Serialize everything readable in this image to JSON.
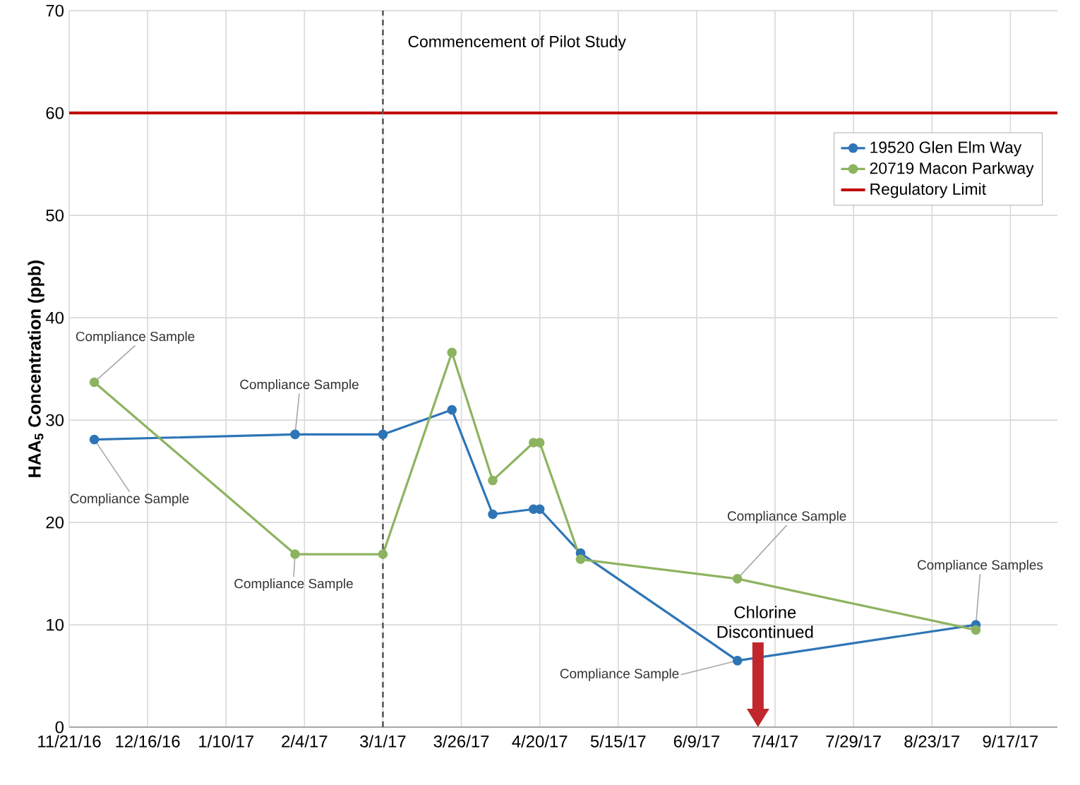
{
  "chart_data": {
    "type": "line",
    "ylabel": "HAA$_{5}$ Concentration (ppb)",
    "x": [
      "2016-11-29",
      "2017-02-01",
      "2017-03-01",
      "2017-03-23",
      "2017-04-05",
      "2017-04-18",
      "2017-04-20",
      "2017-05-03",
      "2017-06-22",
      "2017-09-06"
    ],
    "series": [
      {
        "name": "19520 Glen Elm Way",
        "color": "#2e75b6",
        "values": [
          28.1,
          28.6,
          28.6,
          31.0,
          20.8,
          21.3,
          21.3,
          17.0,
          6.5,
          10.0
        ]
      },
      {
        "name": "20719 Macon Parkway",
        "color": "#8db360",
        "values": [
          33.7,
          16.9,
          16.9,
          36.6,
          24.1,
          27.8,
          27.8,
          16.4,
          14.5,
          9.5
        ]
      }
    ],
    "marker": "circle",
    "grid": true,
    "legend": "top right",
    "xlim": [
      "2016-11-21",
      "2017-10-02"
    ],
    "xticks": [
      {
        "value": "2016-11-21",
        "label": "11/21/16"
      },
      {
        "value": "2016-12-16",
        "label": "12/16/16"
      },
      {
        "value": "2017-01-10",
        "label": "1/10/17"
      },
      {
        "value": "2017-02-04",
        "label": "2/4/17"
      },
      {
        "value": "2017-03-01",
        "label": "3/1/17"
      },
      {
        "value": "2017-03-26",
        "label": "3/26/17"
      },
      {
        "value": "2017-04-20",
        "label": "4/20/17"
      },
      {
        "value": "2017-05-15",
        "label": "5/15/17"
      },
      {
        "value": "2017-06-09",
        "label": "6/9/17"
      },
      {
        "value": "2017-07-04",
        "label": "7/4/17"
      },
      {
        "value": "2017-07-29",
        "label": "7/29/17"
      },
      {
        "value": "2017-08-23",
        "label": "8/23/17"
      },
      {
        "value": "2017-09-17",
        "label": "9/17/17"
      }
    ],
    "ylim": [
      0,
      70
    ],
    "yticks": [
      0,
      10,
      20,
      30,
      40,
      50,
      60,
      70
    ],
    "ref_lines": [
      {
        "axis": "y",
        "value": 60,
        "label": "Regulatory Limit",
        "color": "#c00000"
      },
      {
        "axis": "x",
        "value": "2017-03-01",
        "label": "Commencement of Pilot Study",
        "color": "#595959",
        "line_style": "dashed"
      }
    ],
    "annotations": [
      {
        "text": "Compliance Sample",
        "x": "2016-11-29",
        "y": 33.7
      },
      {
        "text": "Compliance Sample",
        "x": "2016-11-29",
        "y": 28.1
      },
      {
        "text": "Compliance Sample",
        "x": "2017-02-01",
        "y": 28.6
      },
      {
        "text": "Compliance Sample",
        "x": "2017-02-01",
        "y": 16.9
      },
      {
        "text": "Compliance Sample",
        "x": "2017-06-22",
        "y": 14.5
      },
      {
        "text": "Compliance Sample",
        "x": "2017-06-22",
        "y": 6.5
      },
      {
        "text": "Compliance Samples",
        "x": "2017-09-06",
        "y": 10.0
      },
      "Chlorine Discontinued"
    ]
  }
}
